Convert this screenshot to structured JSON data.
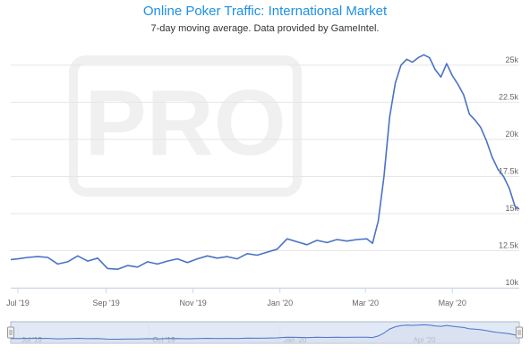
{
  "colors": {
    "title": "#1e90e6",
    "subtitle": "#333333",
    "line": "#4a72c4",
    "grid": "#e6e6e6",
    "axis_text": "#666666",
    "navigator_fill": "#c9d6ef",
    "navigator_border": "#b0b8c8",
    "watermark": "#f0f0f0"
  },
  "watermark_text": "PRO",
  "chart_data": {
    "type": "line",
    "title": "Online Poker Traffic: International Market",
    "subtitle": "7-day moving average. Data provided by GameIntel.",
    "xlabel": "",
    "ylabel": "",
    "x_range": [
      "2019-07-01",
      "2020-06-17"
    ],
    "ylim": [
      10000,
      26500
    ],
    "y_ticks": [
      10000,
      12500,
      15000,
      17500,
      20000,
      22500,
      25000
    ],
    "y_tick_labels": [
      "10k",
      "12.5k",
      "15k",
      "17.5k",
      "20k",
      "22.5k",
      "25k"
    ],
    "x_ticks": [
      {
        "date": "2019-07-01",
        "label": "Jul '19"
      },
      {
        "date": "2019-09-01",
        "label": "Sep '19"
      },
      {
        "date": "2019-11-01",
        "label": "Nov '19"
      },
      {
        "date": "2020-01-01",
        "label": "Jan '20"
      },
      {
        "date": "2020-03-01",
        "label": "Mar '20"
      },
      {
        "date": "2020-05-01",
        "label": "May '20"
      }
    ],
    "y_axis_side": "right",
    "grid": true,
    "legend": "none",
    "series": [
      {
        "values": [
          [
            "2019-06-26",
            11900
          ],
          [
            "2019-07-01",
            11950
          ],
          [
            "2019-07-08",
            12050
          ],
          [
            "2019-07-15",
            12100
          ],
          [
            "2019-07-22",
            12050
          ],
          [
            "2019-07-29",
            11600
          ],
          [
            "2019-08-05",
            11750
          ],
          [
            "2019-08-12",
            12150
          ],
          [
            "2019-08-19",
            11800
          ],
          [
            "2019-08-26",
            12000
          ],
          [
            "2019-09-02",
            11300
          ],
          [
            "2019-09-09",
            11250
          ],
          [
            "2019-09-16",
            11500
          ],
          [
            "2019-09-23",
            11400
          ],
          [
            "2019-09-30",
            11750
          ],
          [
            "2019-10-07",
            11600
          ],
          [
            "2019-10-14",
            11800
          ],
          [
            "2019-10-21",
            11950
          ],
          [
            "2019-10-28",
            11700
          ],
          [
            "2019-11-04",
            11950
          ],
          [
            "2019-11-11",
            12150
          ],
          [
            "2019-11-18",
            12000
          ],
          [
            "2019-11-25",
            12100
          ],
          [
            "2019-12-02",
            11950
          ],
          [
            "2019-12-09",
            12300
          ],
          [
            "2019-12-16",
            12200
          ],
          [
            "2019-12-23",
            12400
          ],
          [
            "2019-12-30",
            12600
          ],
          [
            "2020-01-06",
            13300
          ],
          [
            "2020-01-13",
            13100
          ],
          [
            "2020-01-20",
            12900
          ],
          [
            "2020-01-27",
            13200
          ],
          [
            "2020-02-03",
            13050
          ],
          [
            "2020-02-10",
            13250
          ],
          [
            "2020-02-17",
            13150
          ],
          [
            "2020-02-24",
            13250
          ],
          [
            "2020-03-02",
            13300
          ],
          [
            "2020-03-06",
            13000
          ],
          [
            "2020-03-10",
            14500
          ],
          [
            "2020-03-14",
            17500
          ],
          [
            "2020-03-18",
            21500
          ],
          [
            "2020-03-22",
            23800
          ],
          [
            "2020-03-26",
            25000
          ],
          [
            "2020-03-30",
            25400
          ],
          [
            "2020-04-03",
            25200
          ],
          [
            "2020-04-07",
            25500
          ],
          [
            "2020-04-11",
            25700
          ],
          [
            "2020-04-15",
            25500
          ],
          [
            "2020-04-19",
            24700
          ],
          [
            "2020-04-23",
            24200
          ],
          [
            "2020-04-27",
            25100
          ],
          [
            "2020-05-01",
            24300
          ],
          [
            "2020-05-05",
            23700
          ],
          [
            "2020-05-09",
            23000
          ],
          [
            "2020-05-13",
            21700
          ],
          [
            "2020-05-17",
            21300
          ],
          [
            "2020-05-21",
            20800
          ],
          [
            "2020-05-25",
            19900
          ],
          [
            "2020-05-29",
            18800
          ],
          [
            "2020-06-02",
            18000
          ],
          [
            "2020-06-06",
            17500
          ],
          [
            "2020-06-10",
            16700
          ],
          [
            "2020-06-14",
            15500
          ],
          [
            "2020-06-17",
            15300
          ]
        ]
      }
    ],
    "navigator": {
      "x_ticks": [
        {
          "date": "2019-07-01",
          "label": "Jul '19"
        },
        {
          "date": "2019-10-01",
          "label": "Oct '19"
        },
        {
          "date": "2020-01-01",
          "label": "Jan '20"
        },
        {
          "date": "2020-04-01",
          "label": "Apr '20"
        }
      ]
    }
  }
}
